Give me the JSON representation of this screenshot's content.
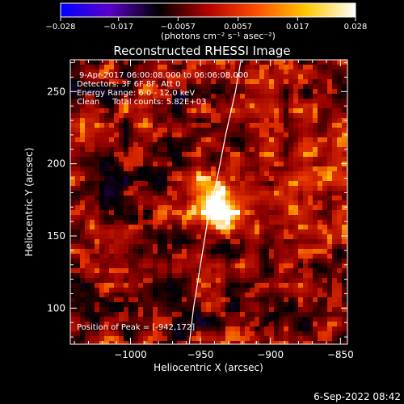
{
  "chart_data": {
    "type": "heatmap",
    "title": "Reconstructed RHESSI Image",
    "xlabel": "Heliocentric X (arcsec)",
    "ylabel": "Heliocentric Y (arcsec)",
    "xlim": [
      -1043,
      -845
    ],
    "ylim": [
      75,
      272
    ],
    "x_ticks": [
      -1000,
      -950,
      -900,
      -850
    ],
    "x_tick_labels": [
      "−1000",
      "−950",
      "−900",
      "−850"
    ],
    "y_ticks": [
      100,
      150,
      200,
      250
    ],
    "y_tick_labels": [
      "100",
      "150",
      "200",
      "250"
    ],
    "colorbar": {
      "ticks": [
        -0.028,
        -0.017,
        -0.0057,
        0.0057,
        0.017,
        0.028
      ],
      "tick_labels": [
        "−0.028",
        "−0.017",
        "−0.0057",
        "0.0057",
        "0.017",
        "0.028"
      ],
      "units_label": "(photons cm⁻² s⁻¹ asec⁻²)",
      "colors": [
        "#0000ff",
        "#5a00c8",
        "#000000",
        "#b40000",
        "#ff5000",
        "#ffc800",
        "#ffffff"
      ]
    },
    "annotations": {
      "time_range": "9-Apr-2017 06:00:08.000 to 06:06:08.000",
      "detectors": "Detectors: 3F 6F 8F, Att 0",
      "energy_range": "Energy Range: 6.0 - 12.0 keV",
      "clean_counts": "Clean     Total counts: 5.82E+03",
      "peak": "Position of Peak = [-942,172]"
    },
    "peak": {
      "x": -942,
      "y": 172
    },
    "limb": [
      [
        -958,
        75
      ],
      [
        -955,
        100
      ],
      [
        -950,
        130
      ],
      [
        -945,
        160
      ],
      [
        -938,
        190
      ],
      [
        -932,
        220
      ],
      [
        -925,
        250
      ],
      [
        -921,
        272
      ]
    ],
    "timestamp": "6-Sep-2022 08:42"
  }
}
